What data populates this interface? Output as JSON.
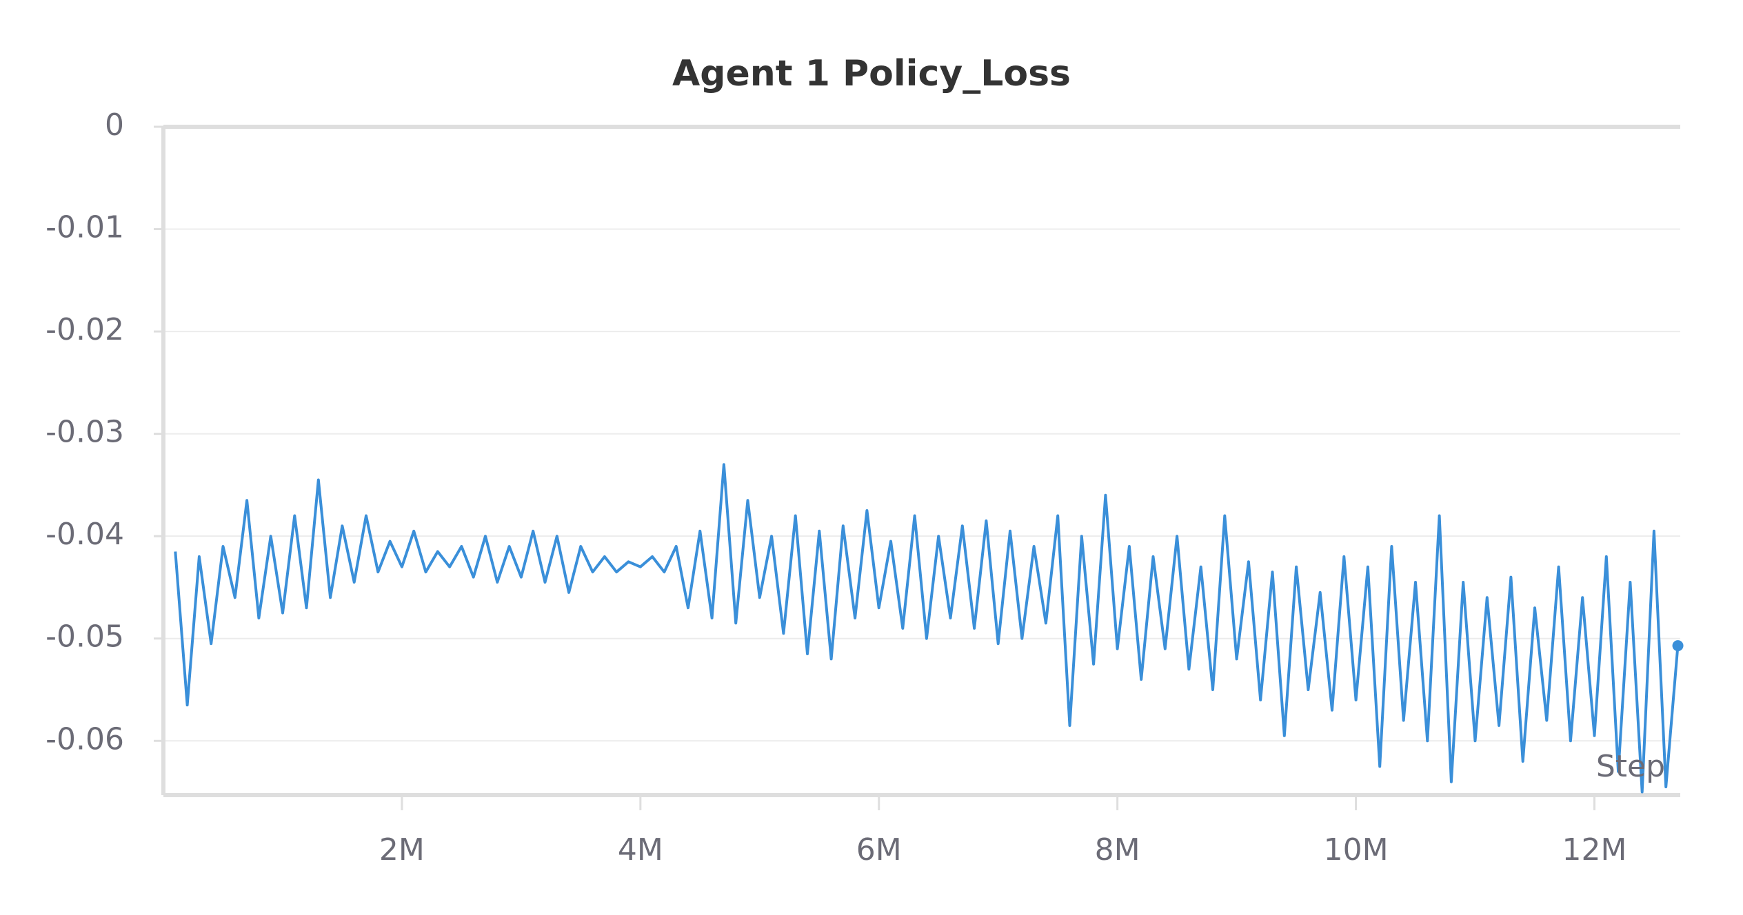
{
  "chart_data": {
    "type": "line",
    "title": "Agent 1 Policy_Loss",
    "xlabel": "Step",
    "x": [
      100000,
      200000,
      300000,
      400000,
      500000,
      600000,
      700000,
      800000,
      900000,
      1000000,
      1100000,
      1200000,
      1300000,
      1400000,
      1500000,
      1600000,
      1700000,
      1800000,
      1900000,
      2000000,
      2100000,
      2200000,
      2300000,
      2400000,
      2500000,
      2600000,
      2700000,
      2800000,
      2900000,
      3000000,
      3100000,
      3200000,
      3300000,
      3400000,
      3500000,
      3600000,
      3700000,
      3800000,
      3900000,
      4000000,
      4100000,
      4200000,
      4300000,
      4400000,
      4500000,
      4600000,
      4700000,
      4800000,
      4900000,
      5000000,
      5100000,
      5200000,
      5300000,
      5400000,
      5500000,
      5600000,
      5700000,
      5800000,
      5900000,
      6000000,
      6100000,
      6200000,
      6300000,
      6400000,
      6500000,
      6600000,
      6700000,
      6800000,
      6900000,
      7000000,
      7100000,
      7200000,
      7300000,
      7400000,
      7500000,
      7600000,
      7700000,
      7800000,
      7900000,
      8000000,
      8100000,
      8200000,
      8300000,
      8400000,
      8500000,
      8600000,
      8700000,
      8800000,
      8900000,
      9000000,
      9100000,
      9200000,
      9300000,
      9400000,
      9500000,
      9600000,
      9700000,
      9800000,
      9900000,
      10000000,
      10100000,
      10200000,
      10300000,
      10400000,
      10500000,
      10600000,
      10700000,
      10800000,
      10900000,
      11000000,
      11100000,
      11200000,
      11300000,
      11400000,
      11500000,
      11600000,
      11700000,
      11800000,
      11900000,
      12000000,
      12100000,
      12200000,
      12300000,
      12400000,
      12500000,
      12600000,
      12700000
    ],
    "series": [
      {
        "name": "Agent 1 Policy_Loss",
        "color": "#3a8fd9",
        "values": [
          -0.0415,
          -0.0565,
          -0.042,
          -0.0505,
          -0.041,
          -0.046,
          -0.0365,
          -0.048,
          -0.04,
          -0.0475,
          -0.038,
          -0.047,
          -0.0345,
          -0.046,
          -0.039,
          -0.0445,
          -0.038,
          -0.0435,
          -0.0405,
          -0.043,
          -0.0395,
          -0.0435,
          -0.0415,
          -0.043,
          -0.041,
          -0.044,
          -0.04,
          -0.0445,
          -0.041,
          -0.044,
          -0.0395,
          -0.0445,
          -0.04,
          -0.0455,
          -0.041,
          -0.0435,
          -0.042,
          -0.0435,
          -0.0425,
          -0.043,
          -0.042,
          -0.0435,
          -0.041,
          -0.047,
          -0.0395,
          -0.048,
          -0.033,
          -0.0485,
          -0.0365,
          -0.046,
          -0.04,
          -0.0495,
          -0.038,
          -0.0515,
          -0.0395,
          -0.052,
          -0.039,
          -0.048,
          -0.0375,
          -0.047,
          -0.0405,
          -0.049,
          -0.038,
          -0.05,
          -0.04,
          -0.048,
          -0.039,
          -0.049,
          -0.0385,
          -0.0505,
          -0.0395,
          -0.05,
          -0.041,
          -0.0485,
          -0.038,
          -0.0585,
          -0.04,
          -0.0525,
          -0.036,
          -0.051,
          -0.041,
          -0.054,
          -0.042,
          -0.051,
          -0.04,
          -0.053,
          -0.043,
          -0.055,
          -0.038,
          -0.052,
          -0.0425,
          -0.056,
          -0.0435,
          -0.0595,
          -0.043,
          -0.055,
          -0.0455,
          -0.057,
          -0.042,
          -0.056,
          -0.043,
          -0.0625,
          -0.041,
          -0.058,
          -0.0445,
          -0.06,
          -0.038,
          -0.064,
          -0.0445,
          -0.06,
          -0.046,
          -0.0585,
          -0.044,
          -0.062,
          -0.047,
          -0.058,
          -0.043,
          -0.06,
          -0.046,
          -0.0595,
          -0.042,
          -0.063,
          -0.0445,
          -0.065,
          -0.0395,
          -0.0645,
          -0.0507
        ]
      }
    ],
    "xlim": [
      0,
      12720000
    ],
    "ylim": [
      -0.0653,
      0
    ],
    "xticks": [
      {
        "value": 2000000,
        "label": "2M"
      },
      {
        "value": 4000000,
        "label": "4M"
      },
      {
        "value": 6000000,
        "label": "6M"
      },
      {
        "value": 8000000,
        "label": "8M"
      },
      {
        "value": 10000000,
        "label": "10M"
      },
      {
        "value": 12000000,
        "label": "12M"
      }
    ],
    "yticks": [
      0,
      -0.01,
      -0.02,
      -0.03,
      -0.04,
      -0.05,
      -0.06
    ],
    "grid": true
  }
}
